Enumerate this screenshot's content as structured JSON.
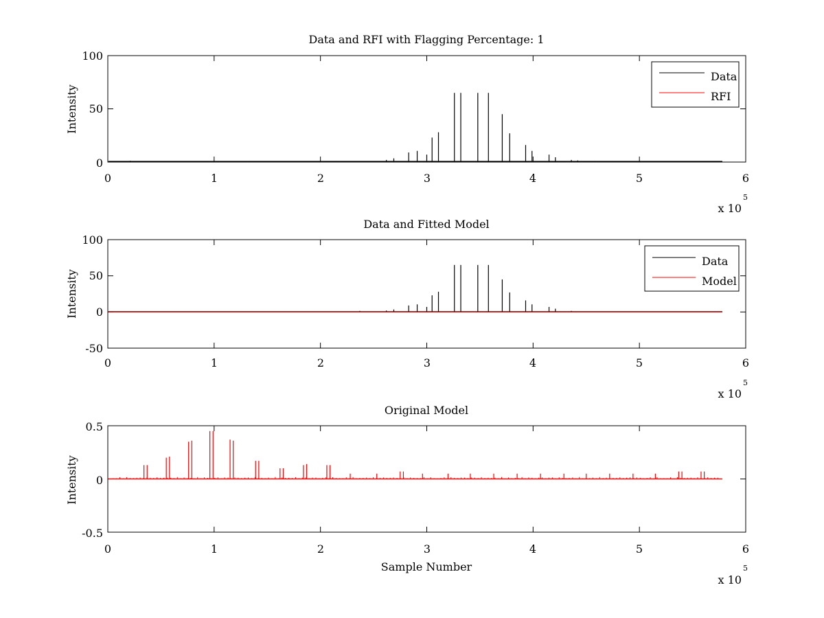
{
  "chart_data": [
    {
      "type": "line",
      "title": "Data and RFI with Flagging Percentage: 1",
      "xlabel": "",
      "ylabel": "Intensity",
      "x_multiplier": "x 10",
      "x_multiplier_exp": "5",
      "xlim": [
        0,
        6
      ],
      "ylim": [
        0,
        100
      ],
      "xticks": [
        "0",
        "1",
        "2",
        "3",
        "4",
        "5",
        "6"
      ],
      "yticks": [
        "0",
        "50",
        "100"
      ],
      "ytick_values": [
        0,
        50,
        100
      ],
      "x_data_end": 5.78,
      "baseline": 0.6,
      "legend": {
        "position": "top-right",
        "entries": [
          "Data",
          "RFI"
        ]
      },
      "series": [
        {
          "name": "Data",
          "color": "#000000",
          "spikes": [
            [
              0.21,
              1.2
            ],
            [
              1.33,
              1.0
            ],
            [
              2.15,
              1.0
            ],
            [
              2.62,
              2.0
            ],
            [
              2.69,
              3.5
            ],
            [
              2.83,
              9.0
            ],
            [
              2.91,
              10.5
            ],
            [
              3.0,
              7.0
            ],
            [
              3.05,
              23.0
            ],
            [
              3.11,
              28.0
            ],
            [
              3.26,
              65.0
            ],
            [
              3.32,
              65.0
            ],
            [
              3.48,
              65.0
            ],
            [
              3.58,
              65.0
            ],
            [
              3.71,
              45.0
            ],
            [
              3.78,
              27.0
            ],
            [
              3.93,
              16.0
            ],
            [
              3.99,
              10.5
            ],
            [
              4.15,
              7.0
            ],
            [
              4.21,
              4.5
            ],
            [
              4.36,
              2.0
            ],
            [
              4.42,
              1.5
            ],
            [
              4.58,
              1.0
            ],
            [
              4.75,
              1.0
            ]
          ]
        },
        {
          "name": "RFI",
          "color": "#ff0000",
          "spikes": []
        }
      ]
    },
    {
      "type": "line",
      "title": "Data and Fitted Model",
      "xlabel": "",
      "ylabel": "Intensity",
      "x_multiplier": "x 10",
      "x_multiplier_exp": "5",
      "xlim": [
        0,
        6
      ],
      "ylim": [
        -50,
        100
      ],
      "xticks": [
        "0",
        "1",
        "2",
        "3",
        "4",
        "5",
        "6"
      ],
      "yticks": [
        "-50",
        "0",
        "50",
        "100"
      ],
      "ytick_values": [
        -50,
        0,
        50,
        100
      ],
      "x_data_end": 5.78,
      "baseline": 0.3,
      "legend": {
        "position": "top-right",
        "entries": [
          "Data",
          "Model"
        ]
      },
      "series": [
        {
          "name": "Data",
          "color": "#000000",
          "spikes": [
            [
              2.37,
              1.5
            ],
            [
              2.62,
              2.0
            ],
            [
              2.69,
              3.5
            ],
            [
              2.83,
              9.0
            ],
            [
              2.91,
              10.5
            ],
            [
              3.0,
              7.0
            ],
            [
              3.05,
              23.0
            ],
            [
              3.11,
              28.0
            ],
            [
              3.26,
              65.0
            ],
            [
              3.32,
              65.0
            ],
            [
              3.48,
              65.0
            ],
            [
              3.58,
              65.0
            ],
            [
              3.71,
              45.0
            ],
            [
              3.78,
              27.0
            ],
            [
              3.93,
              16.0
            ],
            [
              3.99,
              10.5
            ],
            [
              4.15,
              7.0
            ],
            [
              4.21,
              4.5
            ],
            [
              4.36,
              1.5
            ]
          ]
        },
        {
          "name": "Model",
          "color": "#ff0000",
          "spikes": []
        }
      ]
    },
    {
      "type": "line",
      "title": "Original Model",
      "xlabel": "Sample Number",
      "ylabel": "Intensity",
      "x_multiplier": "x 10",
      "x_multiplier_exp": "5",
      "xlim": [
        0,
        6
      ],
      "ylim": [
        -0.5,
        0.5
      ],
      "xticks": [
        "0",
        "1",
        "2",
        "3",
        "4",
        "5",
        "6"
      ],
      "yticks": [
        "-0.5",
        "0",
        "0.5"
      ],
      "ytick_values": [
        -0.5,
        0,
        0.5
      ],
      "x_data_end": 5.78,
      "baseline": 0.0,
      "legend": null,
      "series": [
        {
          "name": "",
          "color": "#ff0000",
          "spikes": [
            [
              0.34,
              0.13
            ],
            [
              0.37,
              0.13
            ],
            [
              0.55,
              0.2
            ],
            [
              0.58,
              0.21
            ],
            [
              0.76,
              0.35
            ],
            [
              0.79,
              0.36
            ],
            [
              0.96,
              0.45
            ],
            [
              0.99,
              0.45
            ],
            [
              1.15,
              0.37
            ],
            [
              1.18,
              0.36
            ],
            [
              1.39,
              0.17
            ],
            [
              1.42,
              0.17
            ],
            [
              1.62,
              0.1
            ],
            [
              1.65,
              0.1
            ],
            [
              1.84,
              0.13
            ],
            [
              1.87,
              0.14
            ],
            [
              2.06,
              0.13
            ],
            [
              2.09,
              0.13
            ],
            [
              2.28,
              0.05
            ],
            [
              2.53,
              0.05
            ],
            [
              2.75,
              0.07
            ],
            [
              2.78,
              0.07
            ],
            [
              2.96,
              0.05
            ],
            [
              3.2,
              0.05
            ],
            [
              3.41,
              0.05
            ],
            [
              3.63,
              0.05
            ],
            [
              3.85,
              0.05
            ],
            [
              4.07,
              0.05
            ],
            [
              4.29,
              0.05
            ],
            [
              4.5,
              0.05
            ],
            [
              4.72,
              0.05
            ],
            [
              4.94,
              0.05
            ],
            [
              5.15,
              0.05
            ],
            [
              5.37,
              0.07
            ],
            [
              5.4,
              0.07
            ],
            [
              5.58,
              0.07
            ],
            [
              5.61,
              0.07
            ]
          ]
        }
      ]
    }
  ]
}
